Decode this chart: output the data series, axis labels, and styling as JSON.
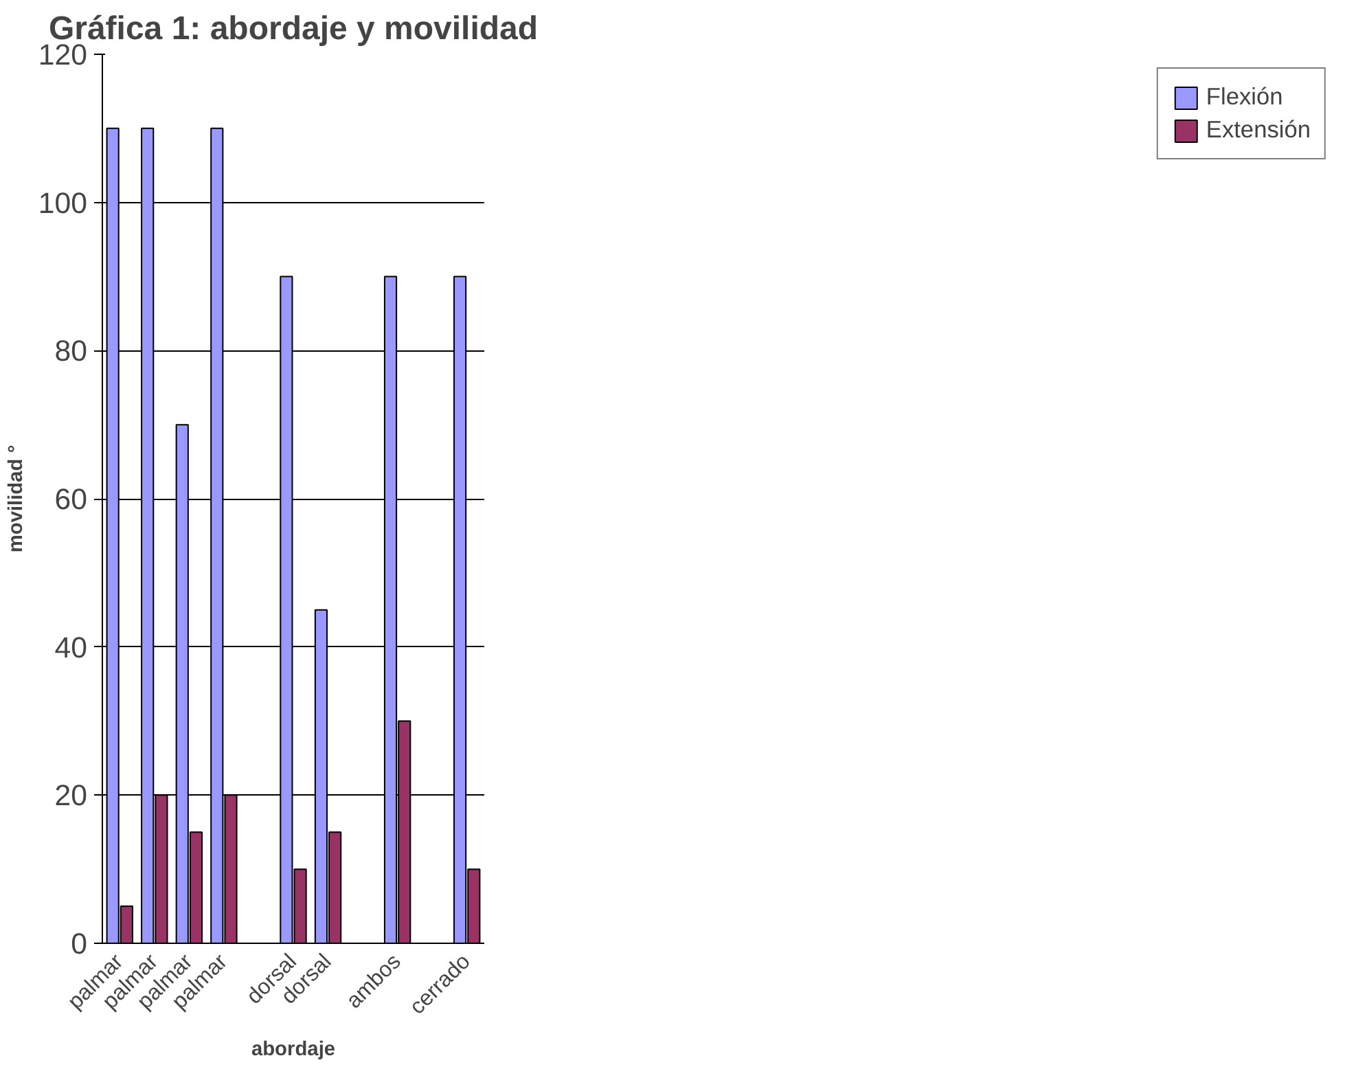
{
  "chart_data": {
    "type": "bar",
    "title": "Gráfica 1: abordaje y movilidad",
    "xlabel": "abordaje",
    "ylabel": "movilidad °",
    "categories": [
      "palmar",
      "palmar",
      "palmar",
      "palmar",
      null,
      "dorsal",
      "dorsal",
      null,
      "ambos",
      null,
      "cerrado"
    ],
    "series": [
      {
        "name": "Flexión",
        "color": "#9999ff",
        "values": [
          110,
          110,
          70,
          110,
          null,
          90,
          45,
          null,
          90,
          null,
          90
        ]
      },
      {
        "name": "Extensión",
        "color": "#993366",
        "values": [
          5,
          20,
          15,
          20,
          null,
          10,
          15,
          null,
          30,
          null,
          10
        ]
      }
    ],
    "ylim": [
      0,
      120
    ],
    "yticks": [
      0,
      20,
      40,
      60,
      80,
      100,
      120
    ],
    "grid": "y",
    "legend": "right"
  }
}
